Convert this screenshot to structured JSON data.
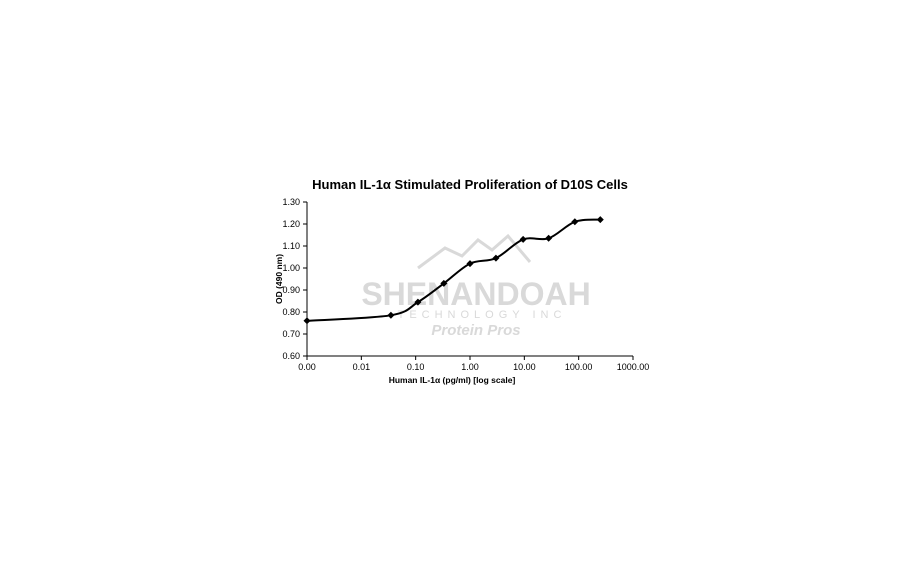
{
  "watermark": {
    "name": "SHENANDOAH",
    "line2": "TECHNOLOGY INC",
    "line3": "Protein Pros",
    "color": "#d9d9d9"
  },
  "chart_data": {
    "type": "line",
    "title": "Human IL-1α Stimulated Proliferation of D10S Cells",
    "xlabel": "Human IL-1α (pg/ml) [log scale]",
    "ylabel": "OD (490 nm)",
    "x_scale": "log",
    "x_ticks": [
      "0.00",
      "0.01",
      "0.10",
      "1.00",
      "10.00",
      "100.00",
      "1000.00"
    ],
    "y_ticks": [
      "0.60",
      "0.70",
      "0.80",
      "0.90",
      "1.00",
      "1.10",
      "1.20",
      "1.30"
    ],
    "xlim": [
      0.001,
      1000
    ],
    "ylim": [
      0.6,
      1.3
    ],
    "grid": false,
    "legend": "none",
    "series": [
      {
        "marker": "diamond",
        "color": "#000000",
        "x": [
          0.001,
          0.035,
          0.11,
          0.33,
          1.0,
          3.0,
          9.5,
          28,
          85,
          250
        ],
        "y": [
          0.76,
          0.785,
          0.845,
          0.93,
          1.02,
          1.045,
          1.13,
          1.135,
          1.21,
          1.22
        ]
      }
    ]
  }
}
